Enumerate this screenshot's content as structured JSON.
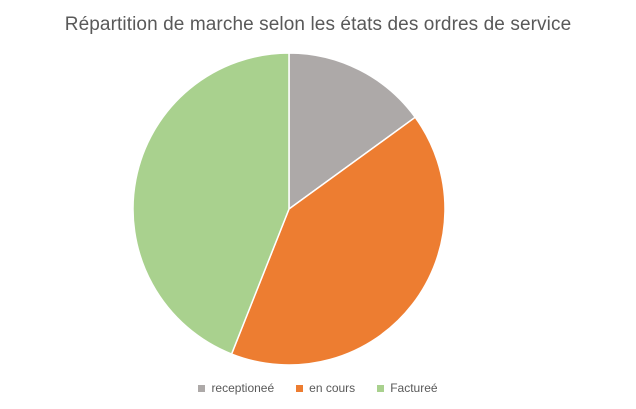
{
  "chart_data": {
    "type": "pie",
    "title": "Répartition de marche selon les états des ordres de service",
    "categories": [
      "receptioneé",
      "en cours",
      "Factureé"
    ],
    "values": [
      15,
      41,
      44
    ],
    "colors": [
      "#ADA9A8",
      "#ED7D31",
      "#A9D18E"
    ],
    "legend": "bottom"
  }
}
